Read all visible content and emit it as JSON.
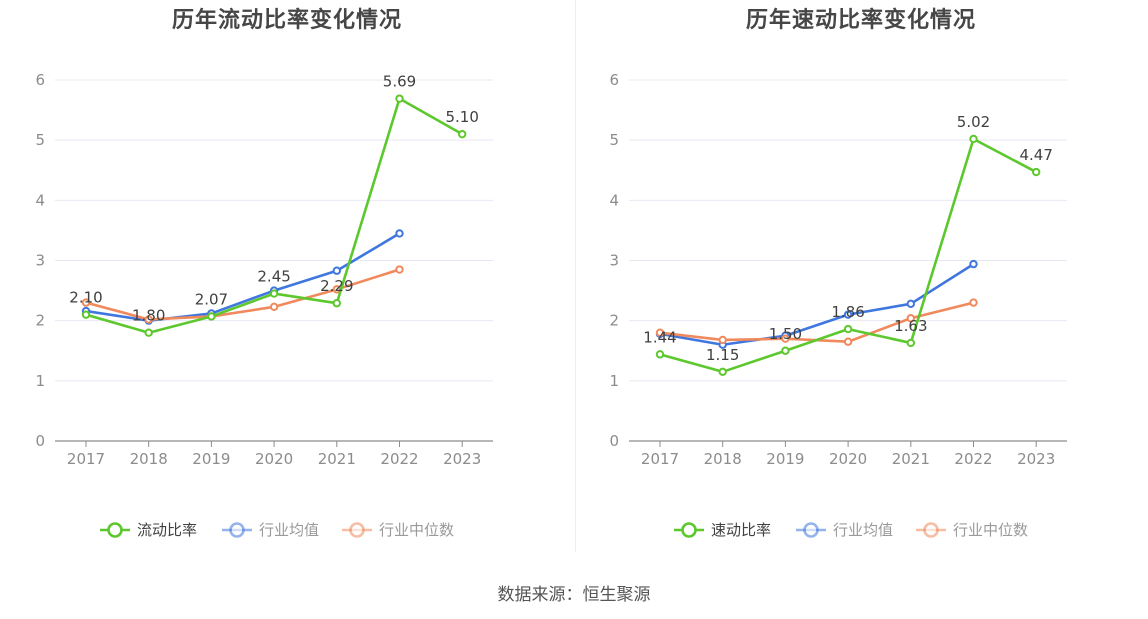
{
  "source": "数据来源：恒生聚源",
  "chart_data": [
    {
      "type": "line",
      "title": "历年流动比率变化情况",
      "categories": [
        "2017",
        "2018",
        "2019",
        "2020",
        "2021",
        "2022",
        "2023"
      ],
      "y_ticks": [
        "0",
        "1",
        "2",
        "3",
        "4",
        "5",
        "6"
      ],
      "ylim": [
        0,
        6
      ],
      "grid": true,
      "legend_position": "bottom",
      "series": [
        {
          "name": "流动比率",
          "color": "#5cc82d",
          "values": [
            2.1,
            1.8,
            2.07,
            2.45,
            2.29,
            5.69,
            5.1
          ],
          "labels": [
            "2.10",
            "1.80",
            "2.07",
            "2.45",
            "2.29",
            "5.69",
            "5.10"
          ]
        },
        {
          "name": "行业均值",
          "color": "#3f77de",
          "values": [
            2.16,
            2.0,
            2.12,
            2.5,
            2.83,
            3.45,
            null
          ]
        },
        {
          "name": "行业中位数",
          "color": "#f08a5d",
          "values": [
            2.3,
            2.02,
            2.07,
            2.23,
            2.52,
            2.85,
            null
          ]
        }
      ]
    },
    {
      "type": "line",
      "title": "历年速动比率变化情况",
      "categories": [
        "2017",
        "2018",
        "2019",
        "2020",
        "2021",
        "2022",
        "2023"
      ],
      "y_ticks": [
        "0",
        "1",
        "2",
        "3",
        "4",
        "5",
        "6"
      ],
      "ylim": [
        0,
        6
      ],
      "grid": true,
      "legend_position": "bottom",
      "series": [
        {
          "name": "速动比率",
          "color": "#5cc82d",
          "values": [
            1.44,
            1.15,
            1.5,
            1.86,
            1.63,
            5.02,
            4.47
          ],
          "labels": [
            "1.44",
            "1.15",
            "1.50",
            "1.86",
            "1.63",
            "5.02",
            "4.47"
          ]
        },
        {
          "name": "行业均值",
          "color": "#3f77de",
          "values": [
            1.78,
            1.6,
            1.75,
            2.1,
            2.28,
            2.94,
            null
          ]
        },
        {
          "name": "行业中位数",
          "color": "#f08a5d",
          "values": [
            1.8,
            1.68,
            1.7,
            1.65,
            2.04,
            2.3,
            null
          ]
        }
      ]
    }
  ]
}
